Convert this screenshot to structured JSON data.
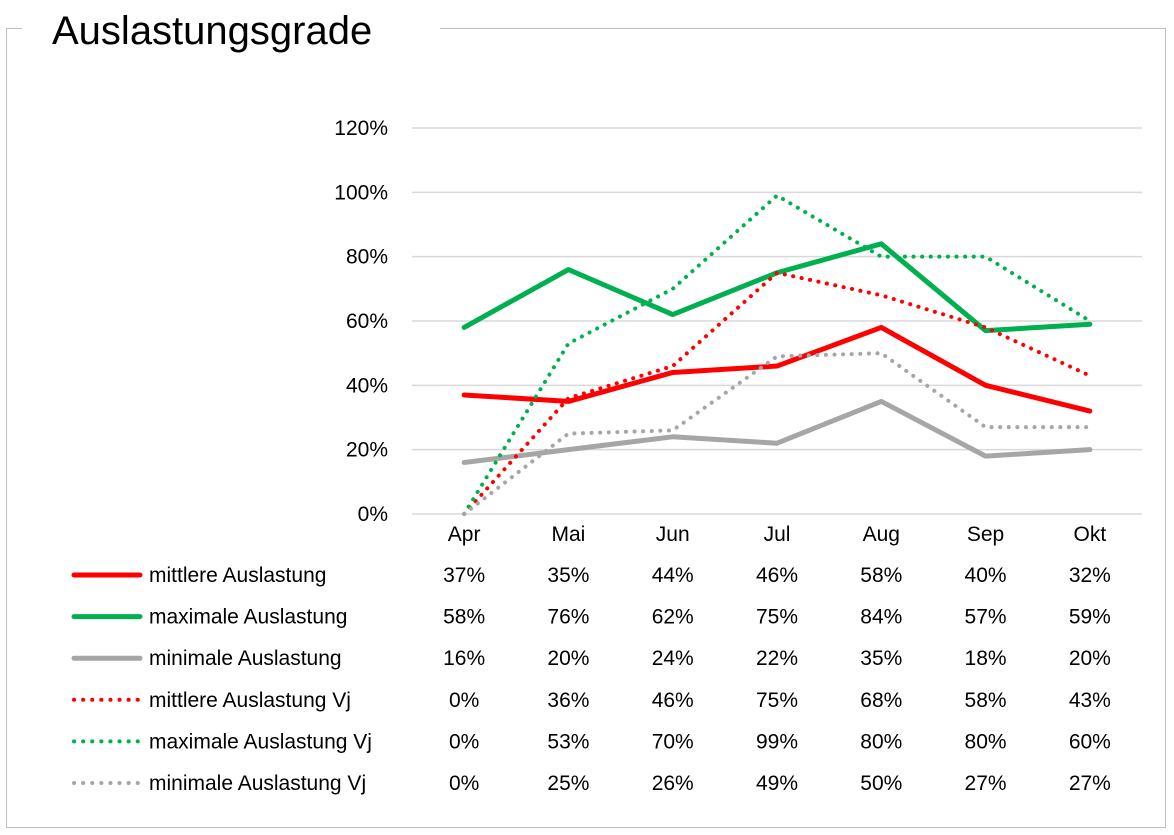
{
  "chart_data": {
    "type": "line",
    "title": "Auslastungsgrade",
    "categories": [
      "Apr",
      "Mai",
      "Jun",
      "Jul",
      "Aug",
      "Sep",
      "Okt"
    ],
    "ylim": [
      0,
      120
    ],
    "yticks": [
      0,
      20,
      40,
      60,
      80,
      100,
      120
    ],
    "ytick_labels": [
      "0%",
      "20%",
      "40%",
      "60%",
      "80%",
      "100%",
      "120%"
    ],
    "grid": "horizontal",
    "legend": "data-table-bottom",
    "series": [
      {
        "name": "mittlere Auslastung",
        "color": "#ff0000",
        "style": "solid",
        "values": [
          37,
          35,
          44,
          46,
          58,
          40,
          32
        ],
        "labels": [
          "37%",
          "35%",
          "44%",
          "46%",
          "58%",
          "40%",
          "32%"
        ]
      },
      {
        "name": "maximale Auslastung",
        "color": "#00b050",
        "style": "solid",
        "values": [
          58,
          76,
          62,
          75,
          84,
          57,
          59
        ],
        "labels": [
          "58%",
          "76%",
          "62%",
          "75%",
          "84%",
          "57%",
          "59%"
        ]
      },
      {
        "name": "minimale Auslastung",
        "color": "#a6a6a6",
        "style": "solid",
        "values": [
          16,
          20,
          24,
          22,
          35,
          18,
          20
        ],
        "labels": [
          "16%",
          "20%",
          "24%",
          "22%",
          "35%",
          "18%",
          "20%"
        ]
      },
      {
        "name": "mittlere Auslastung Vj",
        "color": "#ff0000",
        "style": "dotted",
        "values": [
          0,
          36,
          46,
          75,
          68,
          58,
          43
        ],
        "labels": [
          "0%",
          "36%",
          "46%",
          "75%",
          "68%",
          "58%",
          "43%"
        ]
      },
      {
        "name": "maximale Auslastung Vj",
        "color": "#00b050",
        "style": "dotted",
        "values": [
          0,
          53,
          70,
          99,
          80,
          80,
          60
        ],
        "labels": [
          "0%",
          "53%",
          "70%",
          "99%",
          "80%",
          "80%",
          "60%"
        ]
      },
      {
        "name": "minimale Auslastung Vj",
        "color": "#a6a6a6",
        "style": "dotted",
        "values": [
          0,
          25,
          26,
          49,
          50,
          27,
          27
        ],
        "labels": [
          "0%",
          "25%",
          "26%",
          "49%",
          "50%",
          "27%",
          "27%"
        ]
      }
    ]
  }
}
